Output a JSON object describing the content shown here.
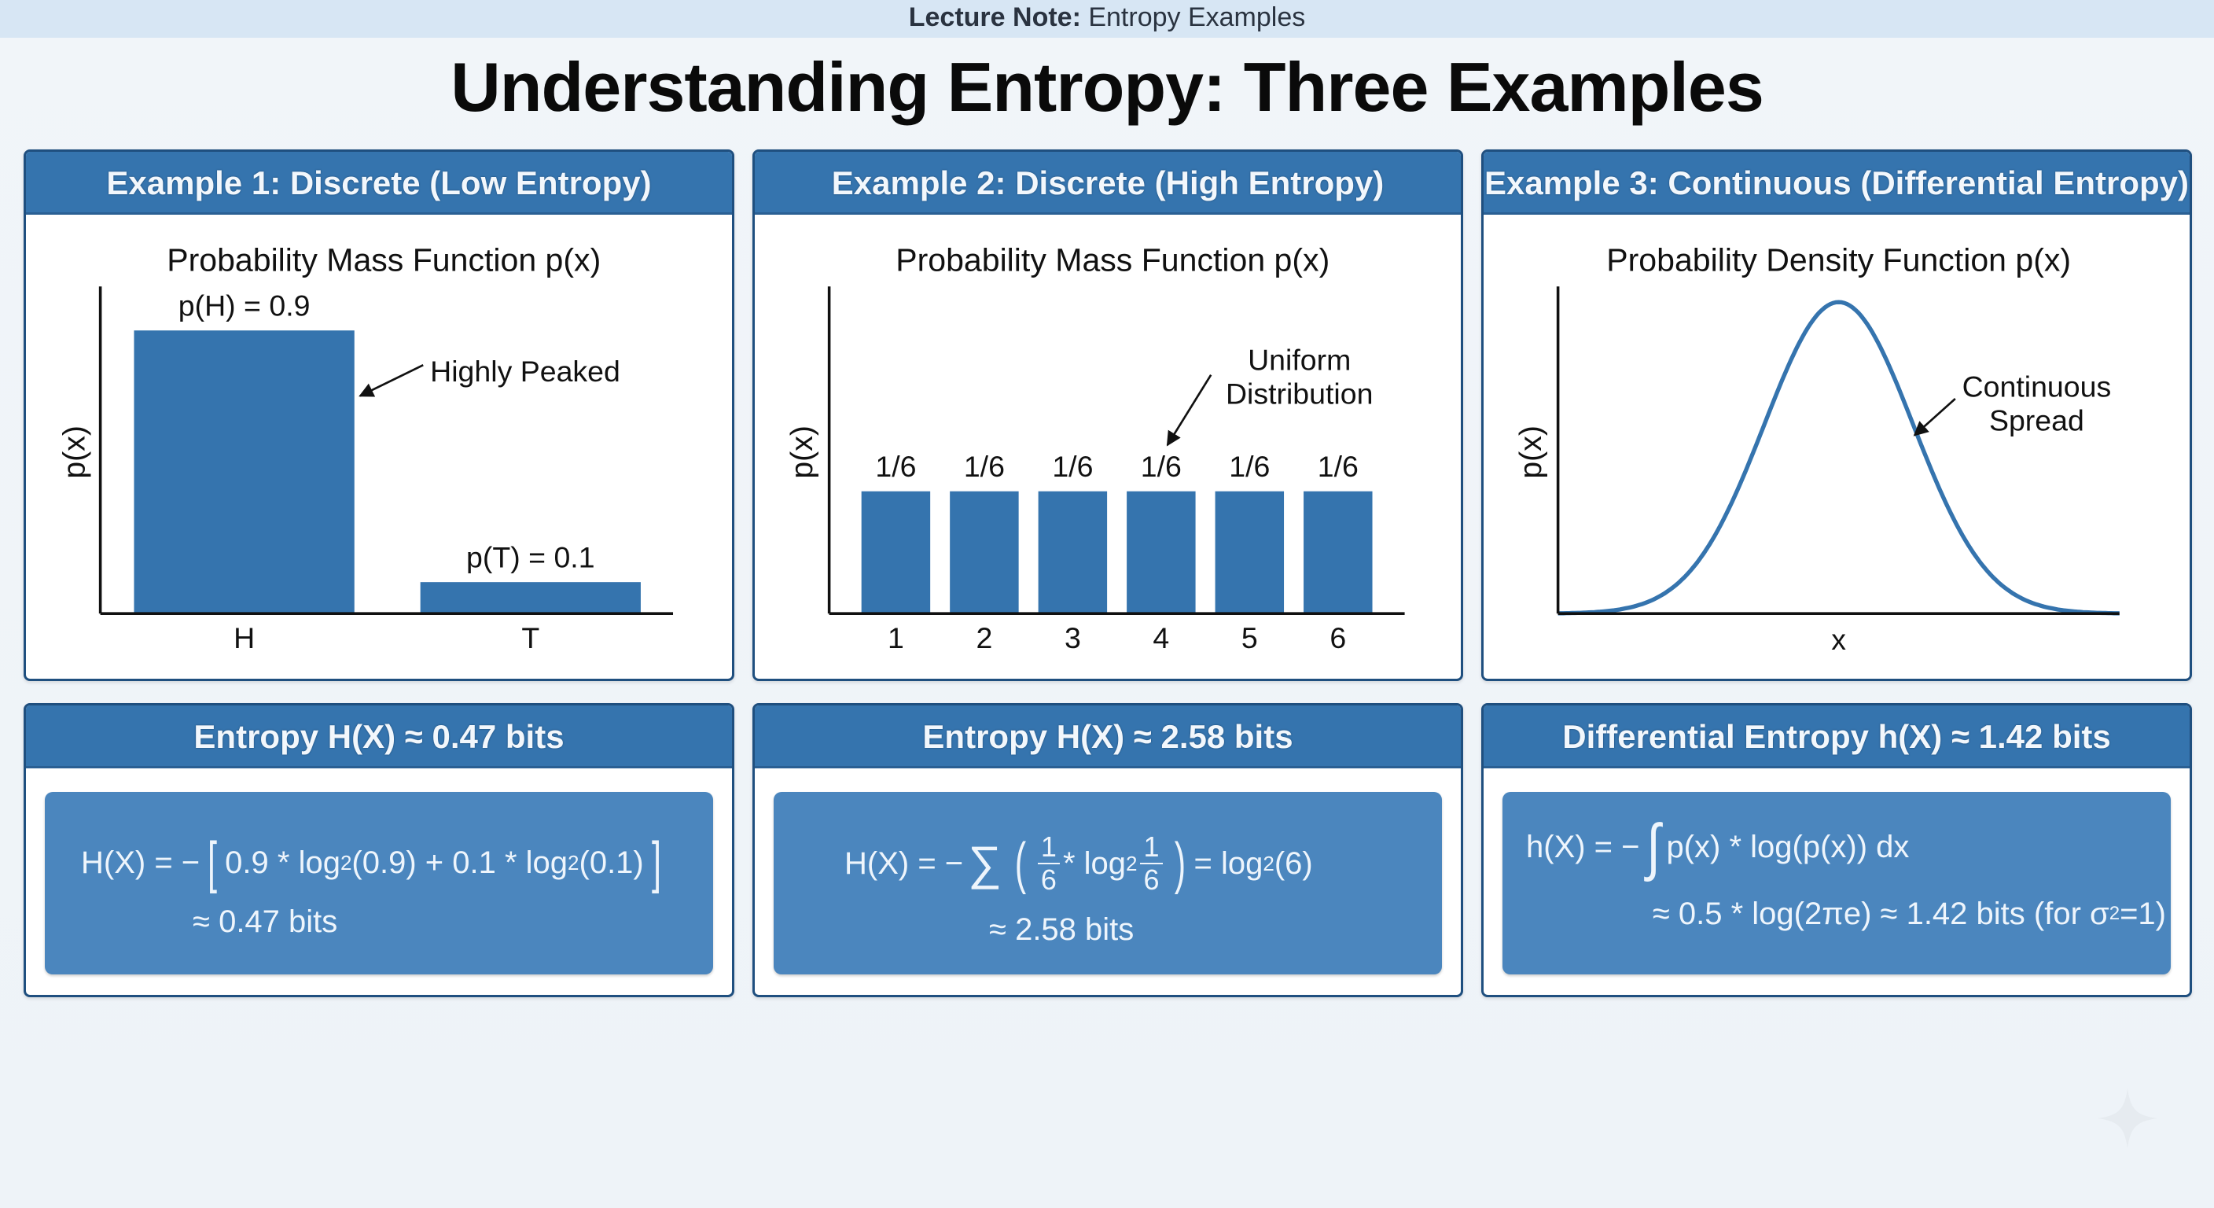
{
  "header": {
    "label_bold": "Lecture Note:",
    "label_rest": " Entropy Examples"
  },
  "title": "Understanding Entropy: Three Examples",
  "colors": {
    "header_blue": "#3574ae",
    "formula_blue": "#4b86be",
    "bar_blue": "#3574ae",
    "border": "#1f4f7f"
  },
  "examples": [
    {
      "header": "Example 1: Discrete (Low Entropy)",
      "entropy_header": "Entropy H(X) ≈ 0.47 bits",
      "formula": {
        "lhs": "H(X) = −",
        "lb": "[",
        "a": "0.9 * log",
        "s1": "2",
        "b": "(0.9) + 0.1 * log",
        "s2": "2",
        "c": "(0.1)",
        "rb": "]",
        "result": "≈ 0.47 bits"
      }
    },
    {
      "header": "Example 2: Discrete (High Entropy)",
      "entropy_header": "Entropy H(X) ≈ 2.58 bits",
      "formula": {
        "lhs": "H(X) = −",
        "sum": "∑",
        "lp": "(",
        "n1": "1",
        "d1": "6",
        "mid": "* log",
        "s1": "2",
        "n2": "1",
        "d2": "6",
        "rp": ")",
        "rhs": "= log",
        "s2": "2",
        "rhs2": "(6)",
        "result": "≈ 2.58 bits"
      }
    },
    {
      "header": "Example 3: Continuous (Differential Entropy)",
      "entropy_header": "Differential Entropy h(X) ≈ 1.42 bits",
      "formula": {
        "lhs": "h(X) = −",
        "int": "∫",
        "body": "p(x) * log(p(x)) dx",
        "result": "≈ 0.5 * log(2πe) ≈ 1.42 bits (for σ",
        "sup": "2",
        "end": "=1)"
      }
    }
  ],
  "chart_data": [
    {
      "type": "bar",
      "title": "Probability Mass Function p(x)",
      "ylabel": "p(x)",
      "xlabel": "",
      "categories": [
        "H",
        "T"
      ],
      "values": [
        0.9,
        0.1
      ],
      "value_labels": [
        "p(H) = 0.9",
        "p(T) = 0.1"
      ],
      "ylim": [
        0,
        1.04
      ],
      "annotation": [
        "Highly Peaked"
      ]
    },
    {
      "type": "bar",
      "title": "Probability Mass Function p(x)",
      "ylabel": "p(x)",
      "xlabel": "",
      "categories": [
        "1",
        "2",
        "3",
        "4",
        "5",
        "6"
      ],
      "values": [
        0.1667,
        0.1667,
        0.1667,
        0.1667,
        0.1667,
        0.1667
      ],
      "value_labels": [
        "1/6",
        "1/6",
        "1/6",
        "1/6",
        "1/6",
        "1/6"
      ],
      "ylim": [
        0,
        0.446
      ],
      "annotation": [
        "Uniform",
        "Distribution"
      ]
    },
    {
      "type": "line",
      "title": "Probability Density Function p(x)",
      "ylabel": "p(x)",
      "xlabel": "x",
      "distribution": "normal",
      "mean": 0,
      "sigma": 1,
      "xlim": [
        -3.77,
        3.77
      ],
      "ylim": [
        0,
        0.419
      ],
      "annotation": [
        "Continuous",
        "Spread"
      ]
    }
  ]
}
